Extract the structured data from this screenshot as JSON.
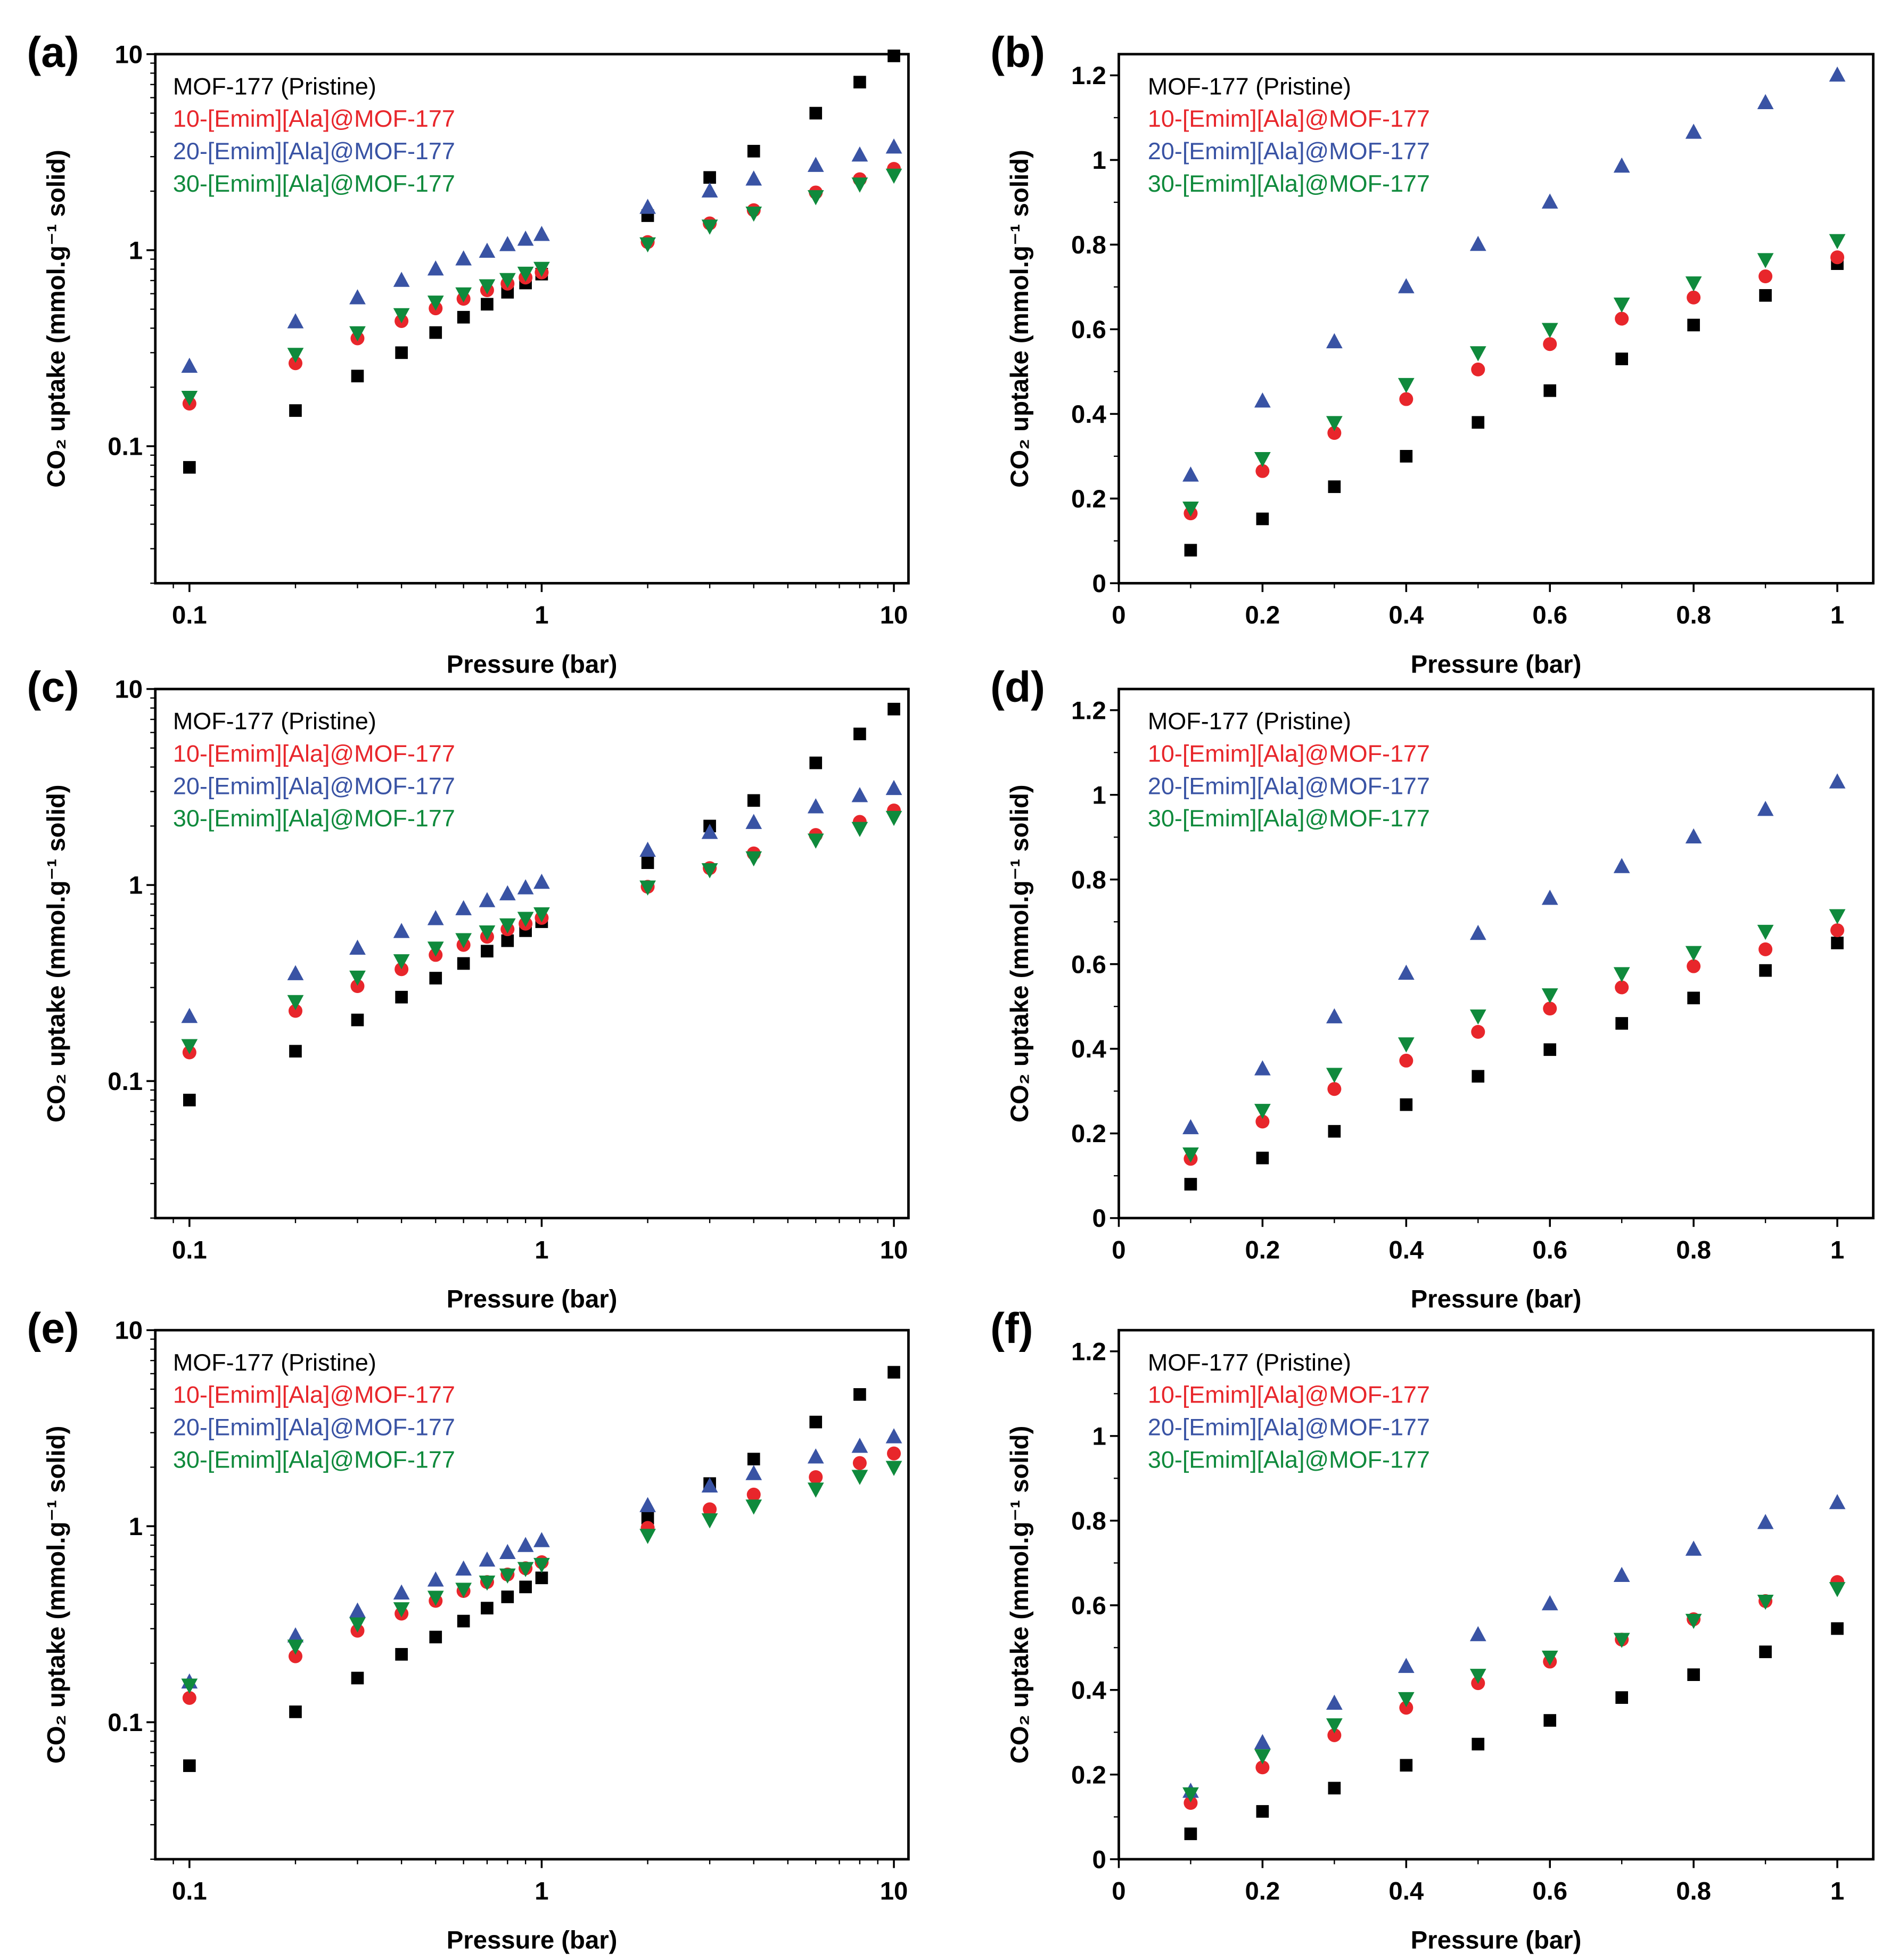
{
  "colors": {
    "MOF-177 (Pristine)": "#000000",
    "10-[Emim][Ala]@MOF-177": "#e8262b",
    "20-[Emim][Ala]@MOF-177": "#3953a4",
    "30-[Emim][Ala]@MOF-177": "#0f8a3c"
  },
  "chart_data": [
    {
      "panel_label": "(a)",
      "type": "scatter",
      "xscale": "log",
      "yscale": "log",
      "xlim": [
        0.08,
        11
      ],
      "ylim": [
        0.02,
        10
      ],
      "xlabel": "Pressure (bar)",
      "ylabel": "CO₂ uptake (mmol.g⁻¹ solid)",
      "xticklabels": [
        "0.1",
        "1",
        "10"
      ],
      "yticklabels": [
        "0.1",
        "1",
        "10"
      ],
      "legend": "top-left",
      "grid": false,
      "x": [
        0.1,
        0.2,
        0.3,
        0.4,
        0.5,
        0.6,
        0.7,
        0.8,
        0.9,
        1,
        2,
        3,
        4,
        6,
        8,
        10
      ],
      "series": [
        {
          "name": "MOF-177 (Pristine)",
          "marker": "square",
          "values": [
            0.078,
            0.152,
            0.228,
            0.3,
            0.38,
            0.455,
            0.53,
            0.61,
            0.68,
            0.755,
            1.5,
            2.35,
            3.2,
            5.0,
            7.2,
            9.8
          ]
        },
        {
          "name": "10-[Emim][Ala]@MOF-177",
          "marker": "circle",
          "values": [
            0.165,
            0.265,
            0.355,
            0.435,
            0.505,
            0.565,
            0.625,
            0.675,
            0.725,
            0.77,
            1.1,
            1.37,
            1.6,
            1.97,
            2.3,
            2.6
          ]
        },
        {
          "name": "20-[Emim][Ala]@MOF-177",
          "marker": "triangle-up",
          "values": [
            0.255,
            0.43,
            0.57,
            0.7,
            0.8,
            0.9,
            0.985,
            1.065,
            1.135,
            1.2,
            1.65,
            2.0,
            2.3,
            2.7,
            3.05,
            3.35
          ]
        },
        {
          "name": "30-[Emim][Ala]@MOF-177",
          "marker": "triangle-down",
          "values": [
            0.178,
            0.295,
            0.38,
            0.47,
            0.545,
            0.6,
            0.66,
            0.71,
            0.765,
            0.81,
            1.08,
            1.33,
            1.55,
            1.88,
            2.18,
            2.42
          ]
        }
      ]
    },
    {
      "panel_label": "(b)",
      "type": "scatter",
      "xscale": "linear",
      "yscale": "linear",
      "xlim": [
        0,
        1.05
      ],
      "ylim": [
        0,
        1.25
      ],
      "xlabel": "Pressure (bar)",
      "ylabel": "CO₂ uptake (mmol.g⁻¹ solid)",
      "xticklabels": [
        "0",
        "0.2",
        "0.4",
        "0.6",
        "0.8",
        "1"
      ],
      "yticklabels": [
        "0",
        "0.2",
        "0.4",
        "0.6",
        "0.8",
        "1",
        "1.2"
      ],
      "legend": "top-left",
      "grid": false,
      "x": [
        0.1,
        0.2,
        0.3,
        0.4,
        0.5,
        0.6,
        0.7,
        0.8,
        0.9,
        1
      ],
      "series": [
        {
          "name": "MOF-177 (Pristine)",
          "marker": "square",
          "values": [
            0.078,
            0.152,
            0.228,
            0.3,
            0.38,
            0.455,
            0.53,
            0.61,
            0.68,
            0.755
          ]
        },
        {
          "name": "10-[Emim][Ala]@MOF-177",
          "marker": "circle",
          "values": [
            0.165,
            0.265,
            0.355,
            0.435,
            0.505,
            0.565,
            0.625,
            0.675,
            0.725,
            0.77
          ]
        },
        {
          "name": "20-[Emim][Ala]@MOF-177",
          "marker": "triangle-up",
          "values": [
            0.255,
            0.43,
            0.57,
            0.7,
            0.8,
            0.9,
            0.985,
            1.065,
            1.135,
            1.2
          ]
        },
        {
          "name": "30-[Emim][Ala]@MOF-177",
          "marker": "triangle-down",
          "values": [
            0.178,
            0.295,
            0.38,
            0.47,
            0.545,
            0.6,
            0.66,
            0.71,
            0.765,
            0.81
          ]
        }
      ]
    },
    {
      "panel_label": "(c)",
      "type": "scatter",
      "xscale": "log",
      "yscale": "log",
      "xlim": [
        0.08,
        11
      ],
      "ylim": [
        0.02,
        10
      ],
      "xlabel": "Pressure (bar)",
      "ylabel": "CO₂ uptake (mmol.g⁻¹ solid)",
      "xticklabels": [
        "0.1",
        "1",
        "10"
      ],
      "yticklabels": [
        "0.1",
        "1",
        "10"
      ],
      "legend": "top-left",
      "grid": false,
      "x": [
        0.1,
        0.2,
        0.3,
        0.4,
        0.5,
        0.6,
        0.7,
        0.8,
        0.9,
        1,
        2,
        3,
        4,
        6,
        8,
        10
      ],
      "series": [
        {
          "name": "MOF-177 (Pristine)",
          "marker": "square",
          "values": [
            0.08,
            0.142,
            0.205,
            0.268,
            0.335,
            0.398,
            0.46,
            0.52,
            0.585,
            0.65,
            1.3,
            2.0,
            2.7,
            4.2,
            5.9,
            7.9
          ]
        },
        {
          "name": "10-[Emim][Ala]@MOF-177",
          "marker": "circle",
          "values": [
            0.14,
            0.228,
            0.305,
            0.372,
            0.44,
            0.495,
            0.545,
            0.595,
            0.635,
            0.68,
            0.98,
            1.22,
            1.45,
            1.8,
            2.1,
            2.4
          ]
        },
        {
          "name": "20-[Emim][Ala]@MOF-177",
          "marker": "triangle-up",
          "values": [
            0.213,
            0.352,
            0.475,
            0.578,
            0.672,
            0.755,
            0.83,
            0.9,
            0.965,
            1.03,
            1.5,
            1.85,
            2.08,
            2.5,
            2.85,
            3.1
          ]
        },
        {
          "name": "30-[Emim][Ala]@MOF-177",
          "marker": "triangle-down",
          "values": [
            0.152,
            0.255,
            0.34,
            0.412,
            0.478,
            0.528,
            0.578,
            0.628,
            0.678,
            0.715,
            0.98,
            1.2,
            1.38,
            1.7,
            1.95,
            2.22
          ]
        }
      ]
    },
    {
      "panel_label": "(d)",
      "type": "scatter",
      "xscale": "linear",
      "yscale": "linear",
      "xlim": [
        0,
        1.05
      ],
      "ylim": [
        0,
        1.25
      ],
      "xlabel": "Pressure (bar)",
      "ylabel": "CO₂ uptake (mmol.g⁻¹ solid)",
      "xticklabels": [
        "0",
        "0.2",
        "0.4",
        "0.6",
        "0.8",
        "1"
      ],
      "yticklabels": [
        "0",
        "0.2",
        "0.4",
        "0.6",
        "0.8",
        "1",
        "1.2"
      ],
      "legend": "top-left",
      "grid": false,
      "x": [
        0.1,
        0.2,
        0.3,
        0.4,
        0.5,
        0.6,
        0.7,
        0.8,
        0.9,
        1
      ],
      "series": [
        {
          "name": "MOF-177 (Pristine)",
          "marker": "square",
          "values": [
            0.08,
            0.142,
            0.205,
            0.268,
            0.335,
            0.398,
            0.46,
            0.52,
            0.585,
            0.65
          ]
        },
        {
          "name": "10-[Emim][Ala]@MOF-177",
          "marker": "circle",
          "values": [
            0.14,
            0.228,
            0.305,
            0.372,
            0.44,
            0.495,
            0.545,
            0.595,
            0.635,
            0.68
          ]
        },
        {
          "name": "20-[Emim][Ala]@MOF-177",
          "marker": "triangle-up",
          "values": [
            0.213,
            0.352,
            0.475,
            0.578,
            0.672,
            0.755,
            0.83,
            0.9,
            0.965,
            1.03
          ]
        },
        {
          "name": "30-[Emim][Ala]@MOF-177",
          "marker": "triangle-down",
          "values": [
            0.152,
            0.255,
            0.34,
            0.412,
            0.478,
            0.528,
            0.578,
            0.628,
            0.678,
            0.715
          ]
        }
      ]
    },
    {
      "panel_label": "(e)",
      "type": "scatter",
      "xscale": "log",
      "yscale": "log",
      "xlim": [
        0.08,
        11
      ],
      "ylim": [
        0.02,
        10
      ],
      "xlabel": "Pressure (bar)",
      "ylabel": "CO₂ uptake (mmol.g⁻¹ solid)",
      "xticklabels": [
        "0.1",
        "1",
        "10"
      ],
      "yticklabels": [
        "0.1",
        "1",
        "10"
      ],
      "legend": "top-left",
      "grid": false,
      "x": [
        0.1,
        0.2,
        0.3,
        0.4,
        0.5,
        0.6,
        0.7,
        0.8,
        0.9,
        1,
        2,
        3,
        4,
        6,
        8,
        10
      ],
      "series": [
        {
          "name": "MOF-177 (Pristine)",
          "marker": "square",
          "values": [
            0.06,
            0.113,
            0.168,
            0.222,
            0.272,
            0.328,
            0.382,
            0.436,
            0.49,
            0.545,
            1.1,
            1.65,
            2.2,
            3.4,
            4.7,
            6.1
          ]
        },
        {
          "name": "10-[Emim][Ala]@MOF-177",
          "marker": "circle",
          "values": [
            0.133,
            0.217,
            0.293,
            0.358,
            0.416,
            0.467,
            0.519,
            0.567,
            0.61,
            0.655,
            0.98,
            1.22,
            1.45,
            1.78,
            2.1,
            2.35
          ]
        },
        {
          "name": "20-[Emim][Ala]@MOF-177",
          "marker": "triangle-up",
          "values": [
            0.16,
            0.275,
            0.368,
            0.455,
            0.53,
            0.603,
            0.67,
            0.732,
            0.795,
            0.842,
            1.27,
            1.6,
            1.85,
            2.25,
            2.55,
            2.85
          ]
        },
        {
          "name": "30-[Emim][Ala]@MOF-177",
          "marker": "triangle-down",
          "values": [
            0.155,
            0.245,
            0.318,
            0.38,
            0.435,
            0.478,
            0.52,
            0.565,
            0.61,
            0.64,
            0.9,
            1.08,
            1.27,
            1.55,
            1.8,
            2.0
          ]
        }
      ]
    },
    {
      "panel_label": "(f)",
      "type": "scatter",
      "xscale": "linear",
      "yscale": "linear",
      "xlim": [
        0,
        1.05
      ],
      "ylim": [
        0,
        1.25
      ],
      "xlabel": "Pressure (bar)",
      "ylabel": "CO₂ uptake (mmol.g⁻¹ solid)",
      "xticklabels": [
        "0",
        "0.2",
        "0.4",
        "0.6",
        "0.8",
        "1"
      ],
      "yticklabels": [
        "0",
        "0.2",
        "0.4",
        "0.6",
        "0.8",
        "1",
        "1.2"
      ],
      "legend": "top-left",
      "grid": false,
      "x": [
        0.1,
        0.2,
        0.3,
        0.4,
        0.5,
        0.6,
        0.7,
        0.8,
        0.9,
        1
      ],
      "series": [
        {
          "name": "MOF-177 (Pristine)",
          "marker": "square",
          "values": [
            0.06,
            0.113,
            0.168,
            0.222,
            0.272,
            0.328,
            0.382,
            0.436,
            0.49,
            0.545
          ]
        },
        {
          "name": "10-[Emim][Ala]@MOF-177",
          "marker": "circle",
          "values": [
            0.133,
            0.217,
            0.293,
            0.358,
            0.416,
            0.467,
            0.519,
            0.567,
            0.61,
            0.655
          ]
        },
        {
          "name": "20-[Emim][Ala]@MOF-177",
          "marker": "triangle-up",
          "values": [
            0.16,
            0.275,
            0.368,
            0.455,
            0.53,
            0.603,
            0.67,
            0.732,
            0.795,
            0.842
          ]
        },
        {
          "name": "30-[Emim][Ala]@MOF-177",
          "marker": "triangle-down",
          "values": [
            0.155,
            0.245,
            0.318,
            0.38,
            0.435,
            0.478,
            0.52,
            0.565,
            0.61,
            0.64
          ]
        }
      ]
    }
  ]
}
